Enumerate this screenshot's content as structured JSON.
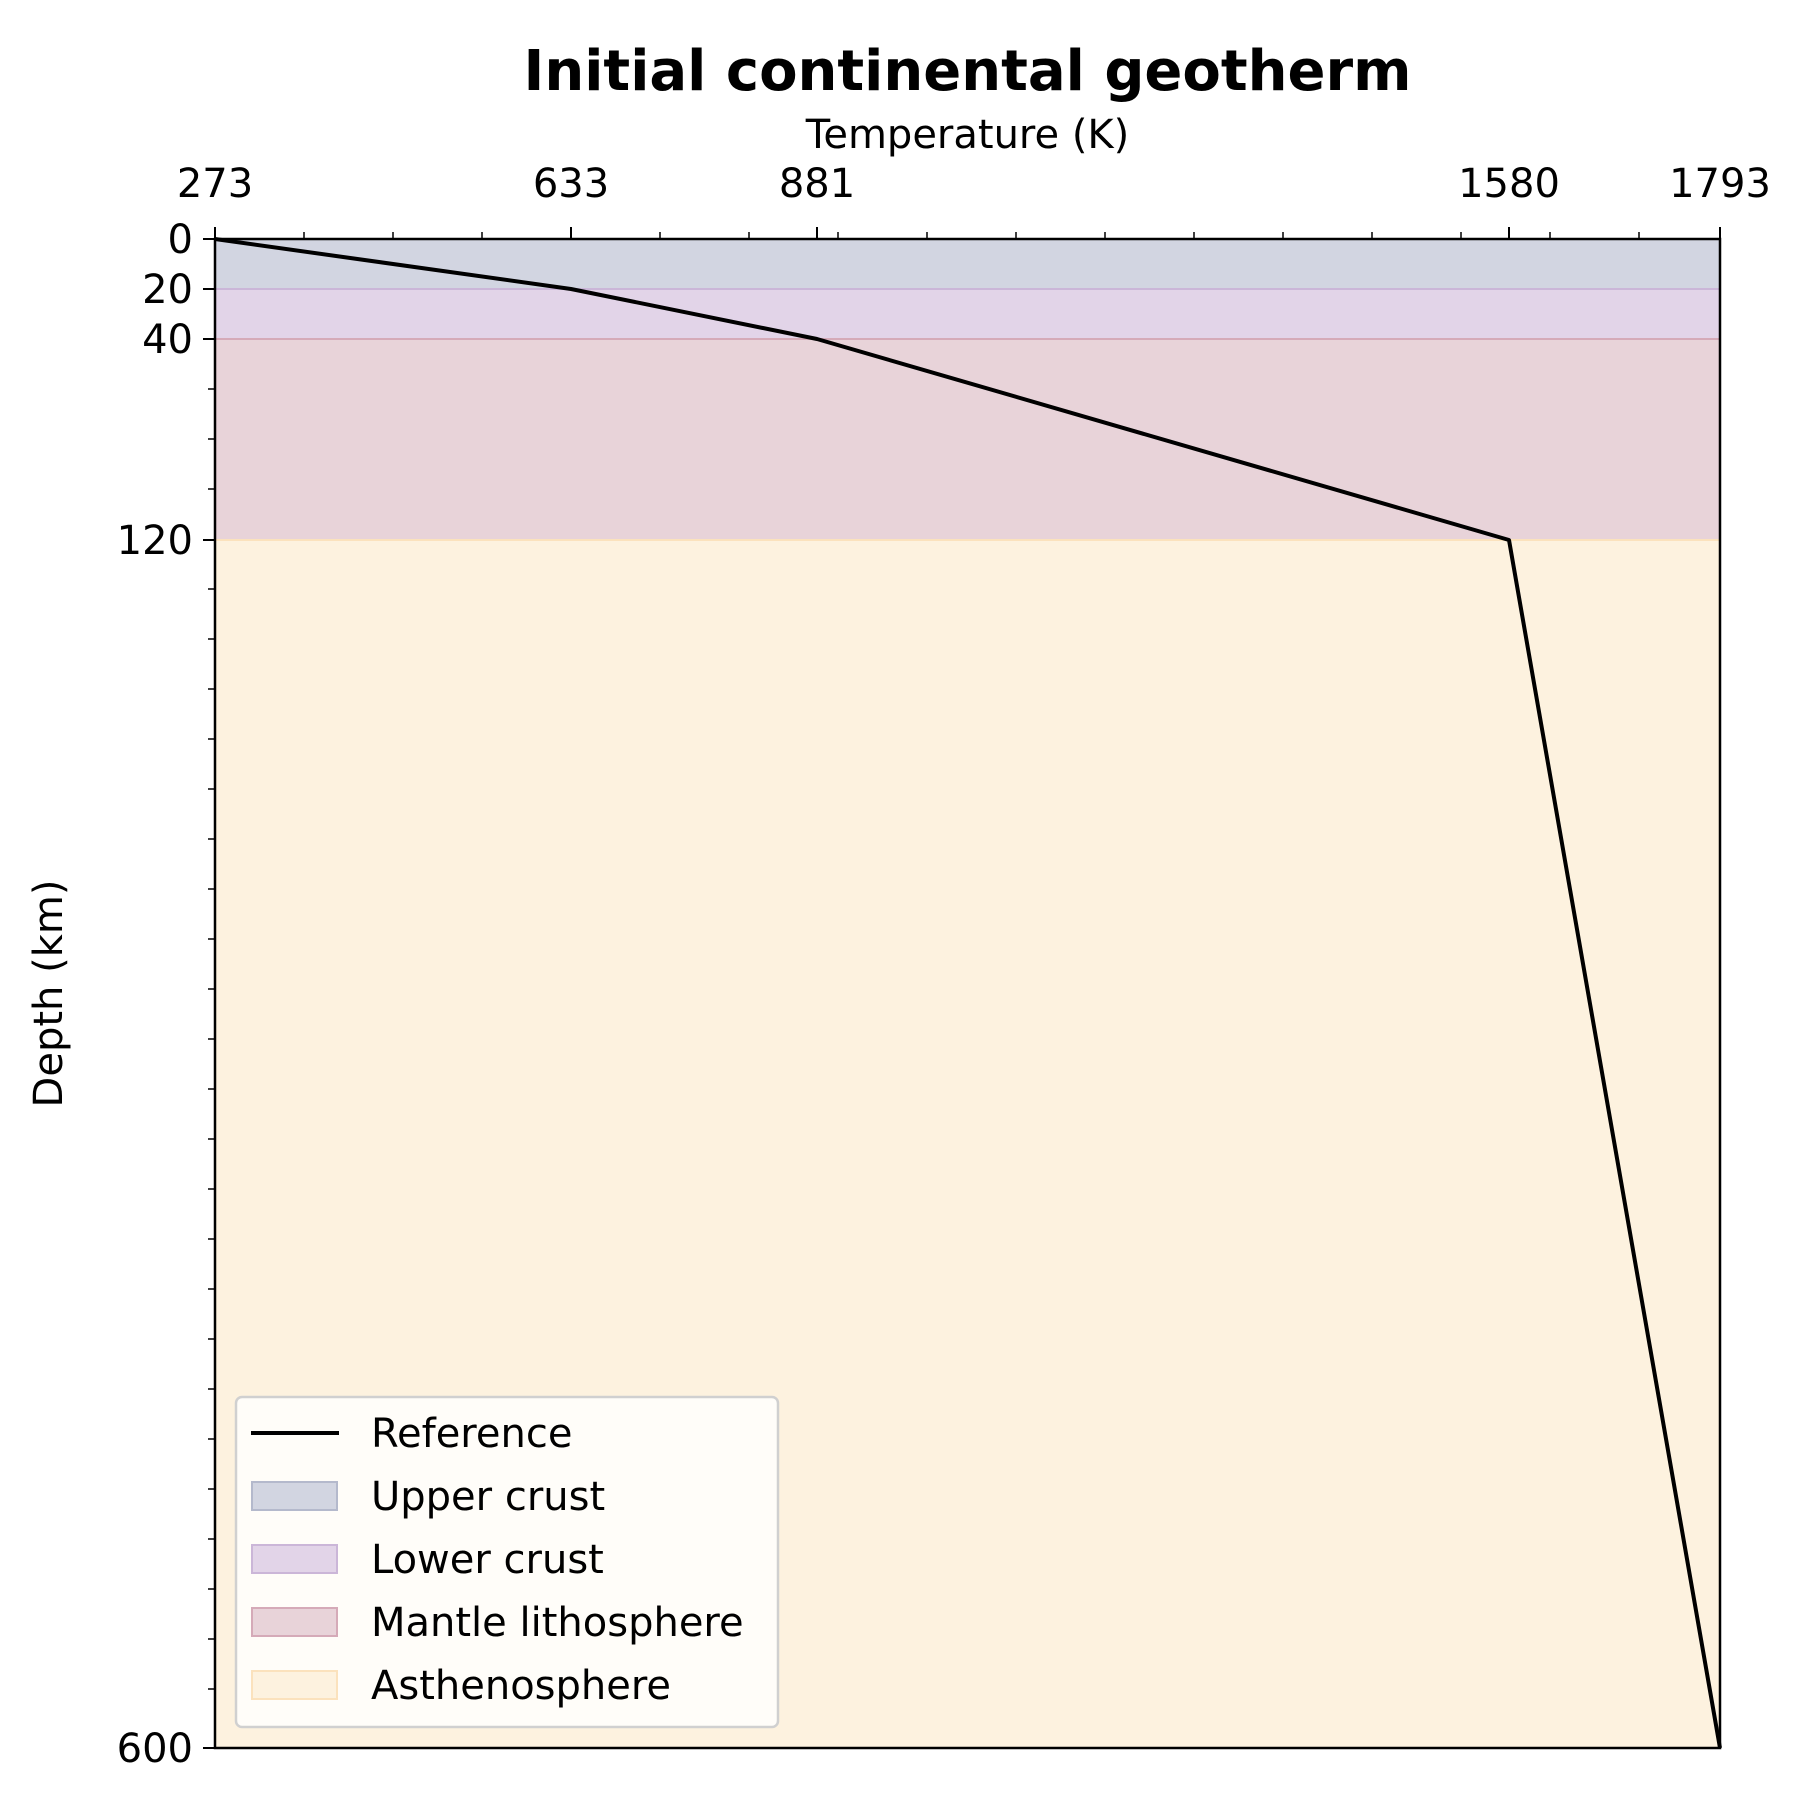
{
  "chart_data": {
    "type": "line",
    "title": "Initial continental geotherm",
    "xlabel": "Temperature (K)",
    "ylabel": "Depth (km)",
    "x_axis_position": "top",
    "y_inverted": true,
    "xlim": [
      273,
      1793
    ],
    "ylim": [
      0,
      600
    ],
    "x_ticks": [
      273,
      633,
      881,
      1580,
      1793
    ],
    "y_ticks": [
      0,
      20,
      40,
      120,
      600
    ],
    "grid": false,
    "legend_position": "lower-left",
    "series": [
      {
        "name": "Reference",
        "color": "#000000",
        "points": [
          {
            "x": 273,
            "y": 0
          },
          {
            "x": 633,
            "y": 20
          },
          {
            "x": 881,
            "y": 40
          },
          {
            "x": 1580,
            "y": 120
          },
          {
            "x": 1793,
            "y": 600
          }
        ]
      }
    ],
    "layers": [
      {
        "name": "Upper crust",
        "top": 0,
        "bottom": 20,
        "fill": "#d2d5e1",
        "edge": "#b4b9cc"
      },
      {
        "name": "Lower crust",
        "top": 20,
        "bottom": 40,
        "fill": "#e2d4e8",
        "edge": "#cbb6d8"
      },
      {
        "name": "Mantle lithosphere",
        "top": 40,
        "bottom": 120,
        "fill": "#e8d3d9",
        "edge": "#d5aab8"
      },
      {
        "name": "Asthenosphere",
        "top": 120,
        "bottom": 600,
        "fill": "#fdf2df",
        "edge": "#fbe2bd"
      }
    ]
  }
}
